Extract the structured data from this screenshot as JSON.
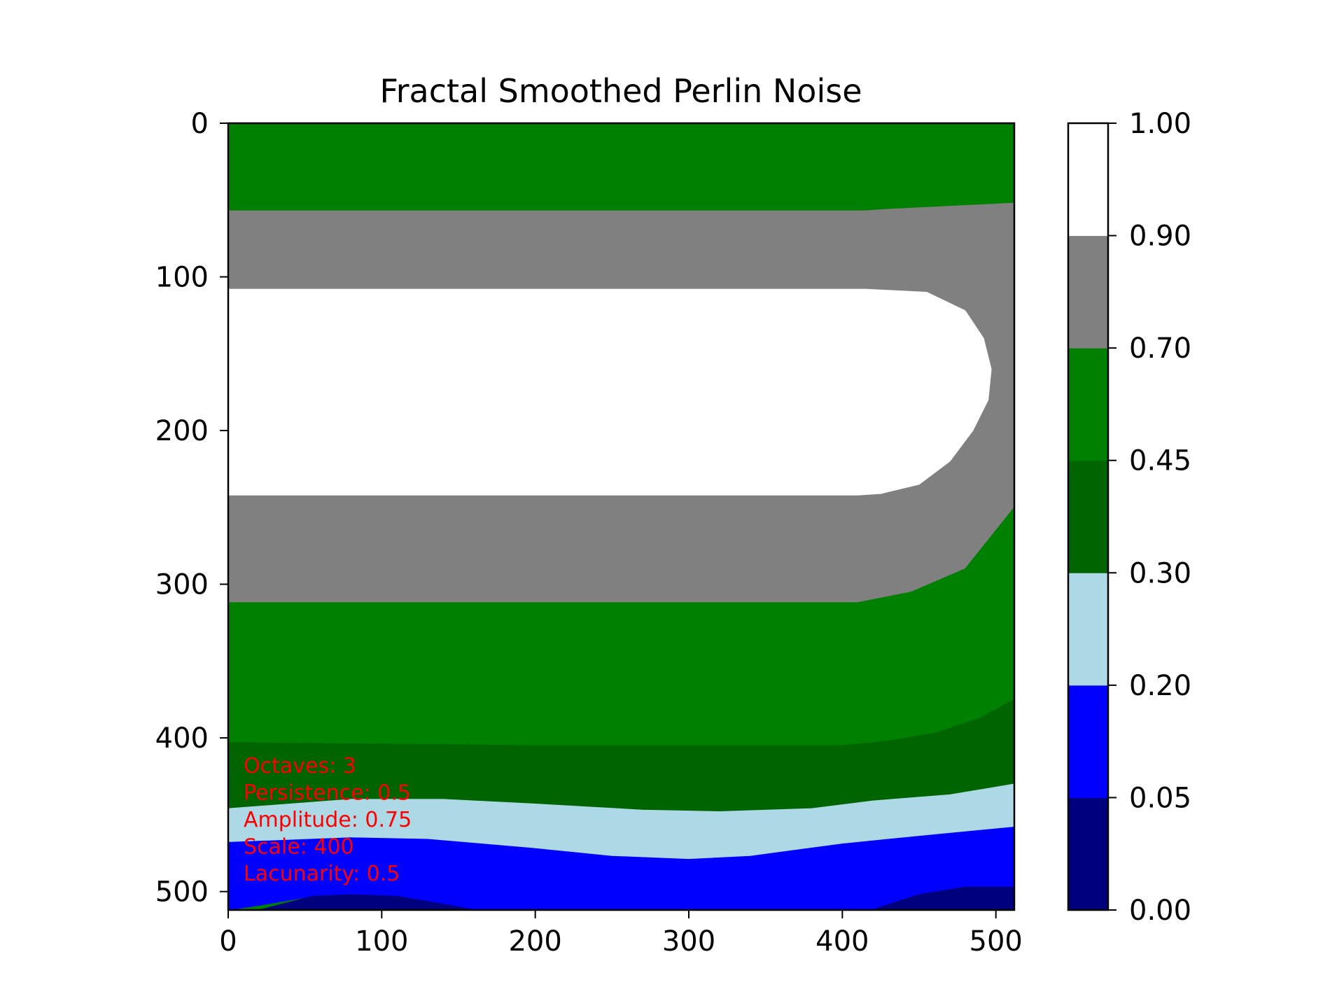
{
  "chart_data": {
    "type": "heatmap",
    "title": "Fractal Smoothed Perlin Noise",
    "xlabel": "",
    "ylabel": "",
    "xlim": [
      0,
      512
    ],
    "ylim": [
      512,
      0
    ],
    "x_ticks": [
      0,
      100,
      200,
      300,
      400,
      500
    ],
    "y_ticks": [
      0,
      100,
      200,
      300,
      400,
      500
    ],
    "grid": false,
    "colorbar": {
      "boundaries": [
        0.0,
        0.05,
        0.2,
        0.3,
        0.45,
        0.7,
        0.9,
        1.0
      ],
      "tick_labels": [
        "0.00",
        "0.05",
        "0.20",
        "0.30",
        "0.45",
        "0.70",
        "0.90",
        "1.00"
      ],
      "colors": [
        "#00007f",
        "#0000ff",
        "#add8e6",
        "#006400",
        "#008000",
        "#808080",
        "#ffffff"
      ]
    },
    "regions": [
      {
        "level": "0.45-0.70",
        "color": "#008000",
        "boundary": [
          [
            0,
            0
          ],
          [
            512,
            0
          ],
          [
            512,
            52
          ],
          [
            430,
            56
          ],
          [
            415,
            57
          ],
          [
            0,
            57
          ]
        ]
      },
      {
        "level": "0.70-0.90",
        "color": "#808080",
        "boundary": [
          [
            0,
            57
          ],
          [
            415,
            57
          ],
          [
            430,
            56
          ],
          [
            512,
            52
          ],
          [
            512,
            250
          ],
          [
            480,
            290
          ],
          [
            445,
            305
          ],
          [
            410,
            312
          ],
          [
            0,
            312
          ]
        ]
      },
      {
        "level": "0.90-1.00",
        "color": "#ffffff",
        "boundary": [
          [
            0,
            108
          ],
          [
            415,
            108
          ],
          [
            455,
            110
          ],
          [
            480,
            122
          ],
          [
            492,
            140
          ],
          [
            497,
            160
          ],
          [
            495,
            180
          ],
          [
            485,
            200
          ],
          [
            470,
            220
          ],
          [
            450,
            235
          ],
          [
            425,
            241
          ],
          [
            410,
            242
          ],
          [
            0,
            242
          ]
        ]
      },
      {
        "level": "0.45-0.70",
        "color": "#008000",
        "boundary": [
          [
            0,
            312
          ],
          [
            410,
            312
          ],
          [
            445,
            305
          ],
          [
            480,
            290
          ],
          [
            512,
            250
          ],
          [
            512,
            375
          ],
          [
            490,
            387
          ],
          [
            460,
            397
          ],
          [
            430,
            402
          ],
          [
            400,
            405
          ],
          [
            200,
            405
          ],
          [
            0,
            403
          ]
        ]
      },
      {
        "level": "0.30-0.45",
        "color": "#006400",
        "boundary": [
          [
            0,
            403
          ],
          [
            200,
            405
          ],
          [
            400,
            405
          ],
          [
            430,
            402
          ],
          [
            460,
            397
          ],
          [
            490,
            387
          ],
          [
            512,
            375
          ],
          [
            512,
            430
          ],
          [
            470,
            437
          ],
          [
            420,
            441
          ],
          [
            380,
            446
          ],
          [
            320,
            448
          ],
          [
            270,
            447
          ],
          [
            200,
            443
          ],
          [
            140,
            440
          ],
          [
            80,
            440
          ],
          [
            0,
            446
          ]
        ]
      },
      {
        "level": "0.20-0.30",
        "color": "#add8e6",
        "boundary": [
          [
            0,
            446
          ],
          [
            80,
            440
          ],
          [
            140,
            440
          ],
          [
            200,
            443
          ],
          [
            270,
            447
          ],
          [
            320,
            448
          ],
          [
            380,
            446
          ],
          [
            420,
            441
          ],
          [
            470,
            437
          ],
          [
            512,
            430
          ],
          [
            512,
            458
          ],
          [
            450,
            464
          ],
          [
            400,
            469
          ],
          [
            340,
            477
          ],
          [
            300,
            479
          ],
          [
            250,
            477
          ],
          [
            200,
            472
          ],
          [
            130,
            466
          ],
          [
            80,
            465
          ],
          [
            0,
            468
          ]
        ]
      },
      {
        "level": "0.05-0.20",
        "color": "#0000ff",
        "boundary": [
          [
            0,
            468
          ],
          [
            80,
            465
          ],
          [
            130,
            466
          ],
          [
            200,
            472
          ],
          [
            250,
            477
          ],
          [
            300,
            479
          ],
          [
            340,
            477
          ],
          [
            400,
            469
          ],
          [
            450,
            464
          ],
          [
            512,
            458
          ],
          [
            512,
            497
          ],
          [
            480,
            497
          ],
          [
            450,
            502
          ],
          [
            425,
            510
          ],
          [
            420,
            512
          ],
          [
            160,
            512
          ],
          [
            145,
            509
          ],
          [
            110,
            503
          ],
          [
            80,
            502
          ],
          [
            55,
            503
          ],
          [
            20,
            509
          ],
          [
            0,
            512
          ]
        ]
      },
      {
        "level": "0.00-0.05",
        "color": "#00007f",
        "boundary": [
          [
            20,
            512
          ],
          [
            55,
            503
          ],
          [
            80,
            502
          ],
          [
            110,
            503
          ],
          [
            145,
            509
          ],
          [
            160,
            512
          ]
        ]
      },
      {
        "level": "0.00-0.05",
        "color": "#00007f",
        "boundary": [
          [
            420,
            512
          ],
          [
            425,
            510
          ],
          [
            450,
            502
          ],
          [
            480,
            497
          ],
          [
            512,
            497
          ],
          [
            512,
            512
          ]
        ]
      }
    ],
    "annotations": [
      "Octaves: 3",
      "Persistence: 0.5",
      "Amplitude: 0.75",
      "Scale: 400",
      "Lacunarity: 0.5"
    ]
  }
}
